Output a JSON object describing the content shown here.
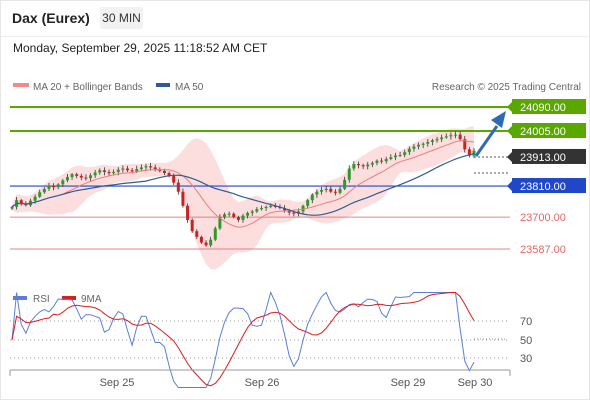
{
  "header": {
    "title": "Dax (Eurex)",
    "interval": "30 MIN"
  },
  "datetime": "Monday, September 29, 2025 11:18:52 AM CET",
  "legend": {
    "bollinger": "MA 20 + Bollinger Bands",
    "ma50": "MA 50",
    "credit": "Research © 2025 Trading Central"
  },
  "colors": {
    "resistance": "#5aa700",
    "pivot": "#1f47c8",
    "support": "#e06868",
    "arrow": "#2e6bb6",
    "candle_up": "#2a9a2a",
    "candle_down": "#c62424",
    "ma20": "#f07f7f",
    "ma50": "#2f5c97",
    "band": "#fbd4d4",
    "rsi": "#5b7fd8",
    "rsi_ma": "#d91e1e"
  },
  "levels": [
    {
      "value": "24090.00",
      "kind": "resistance"
    },
    {
      "value": "24005.00",
      "kind": "resistance"
    },
    {
      "value": "23913.00",
      "kind": "current"
    },
    {
      "value": "23810.00",
      "kind": "pivot"
    },
    {
      "value": "23700.00",
      "kind": "support"
    },
    {
      "value": "23587.00",
      "kind": "support"
    }
  ],
  "oscillator": {
    "legend_rsi": "RSI",
    "legend_ma": "9MA",
    "levels": [
      "70",
      "50",
      "30"
    ]
  },
  "x_axis": {
    "labels": [
      "Sep 25",
      "Sep 26",
      "Sep 29",
      "Sep 30"
    ]
  },
  "chart_data": {
    "type": "line",
    "y_range": [
      23520,
      24120
    ],
    "candles": [
      23736,
      23760,
      23748,
      23742,
      23758,
      23772,
      23788,
      23800,
      23812,
      23806,
      23816,
      23830,
      23842,
      23852,
      23846,
      23840,
      23838,
      23848,
      23858,
      23866,
      23860,
      23856,
      23860,
      23868,
      23872,
      23866,
      23862,
      23870,
      23876,
      23880,
      23876,
      23870,
      23864,
      23856,
      23846,
      23822,
      23790,
      23740,
      23690,
      23650,
      23630,
      23610,
      23600,
      23620,
      23660,
      23700,
      23710,
      23712,
      23700,
      23690,
      23705,
      23715,
      23720,
      23728,
      23732,
      23736,
      23740,
      23736,
      23732,
      23724,
      23716,
      23712,
      23720,
      23740,
      23760,
      23780,
      23790,
      23796,
      23800,
      23790,
      23786,
      23800,
      23832,
      23872,
      23888,
      23884,
      23880,
      23886,
      23892,
      23900,
      23898,
      23906,
      23912,
      23918,
      23920,
      23930,
      23942,
      23950,
      23956,
      23960,
      23966,
      23972,
      23976,
      23982,
      23986,
      23990,
      23992,
      23976,
      23940,
      23918,
      23935
    ]
  }
}
